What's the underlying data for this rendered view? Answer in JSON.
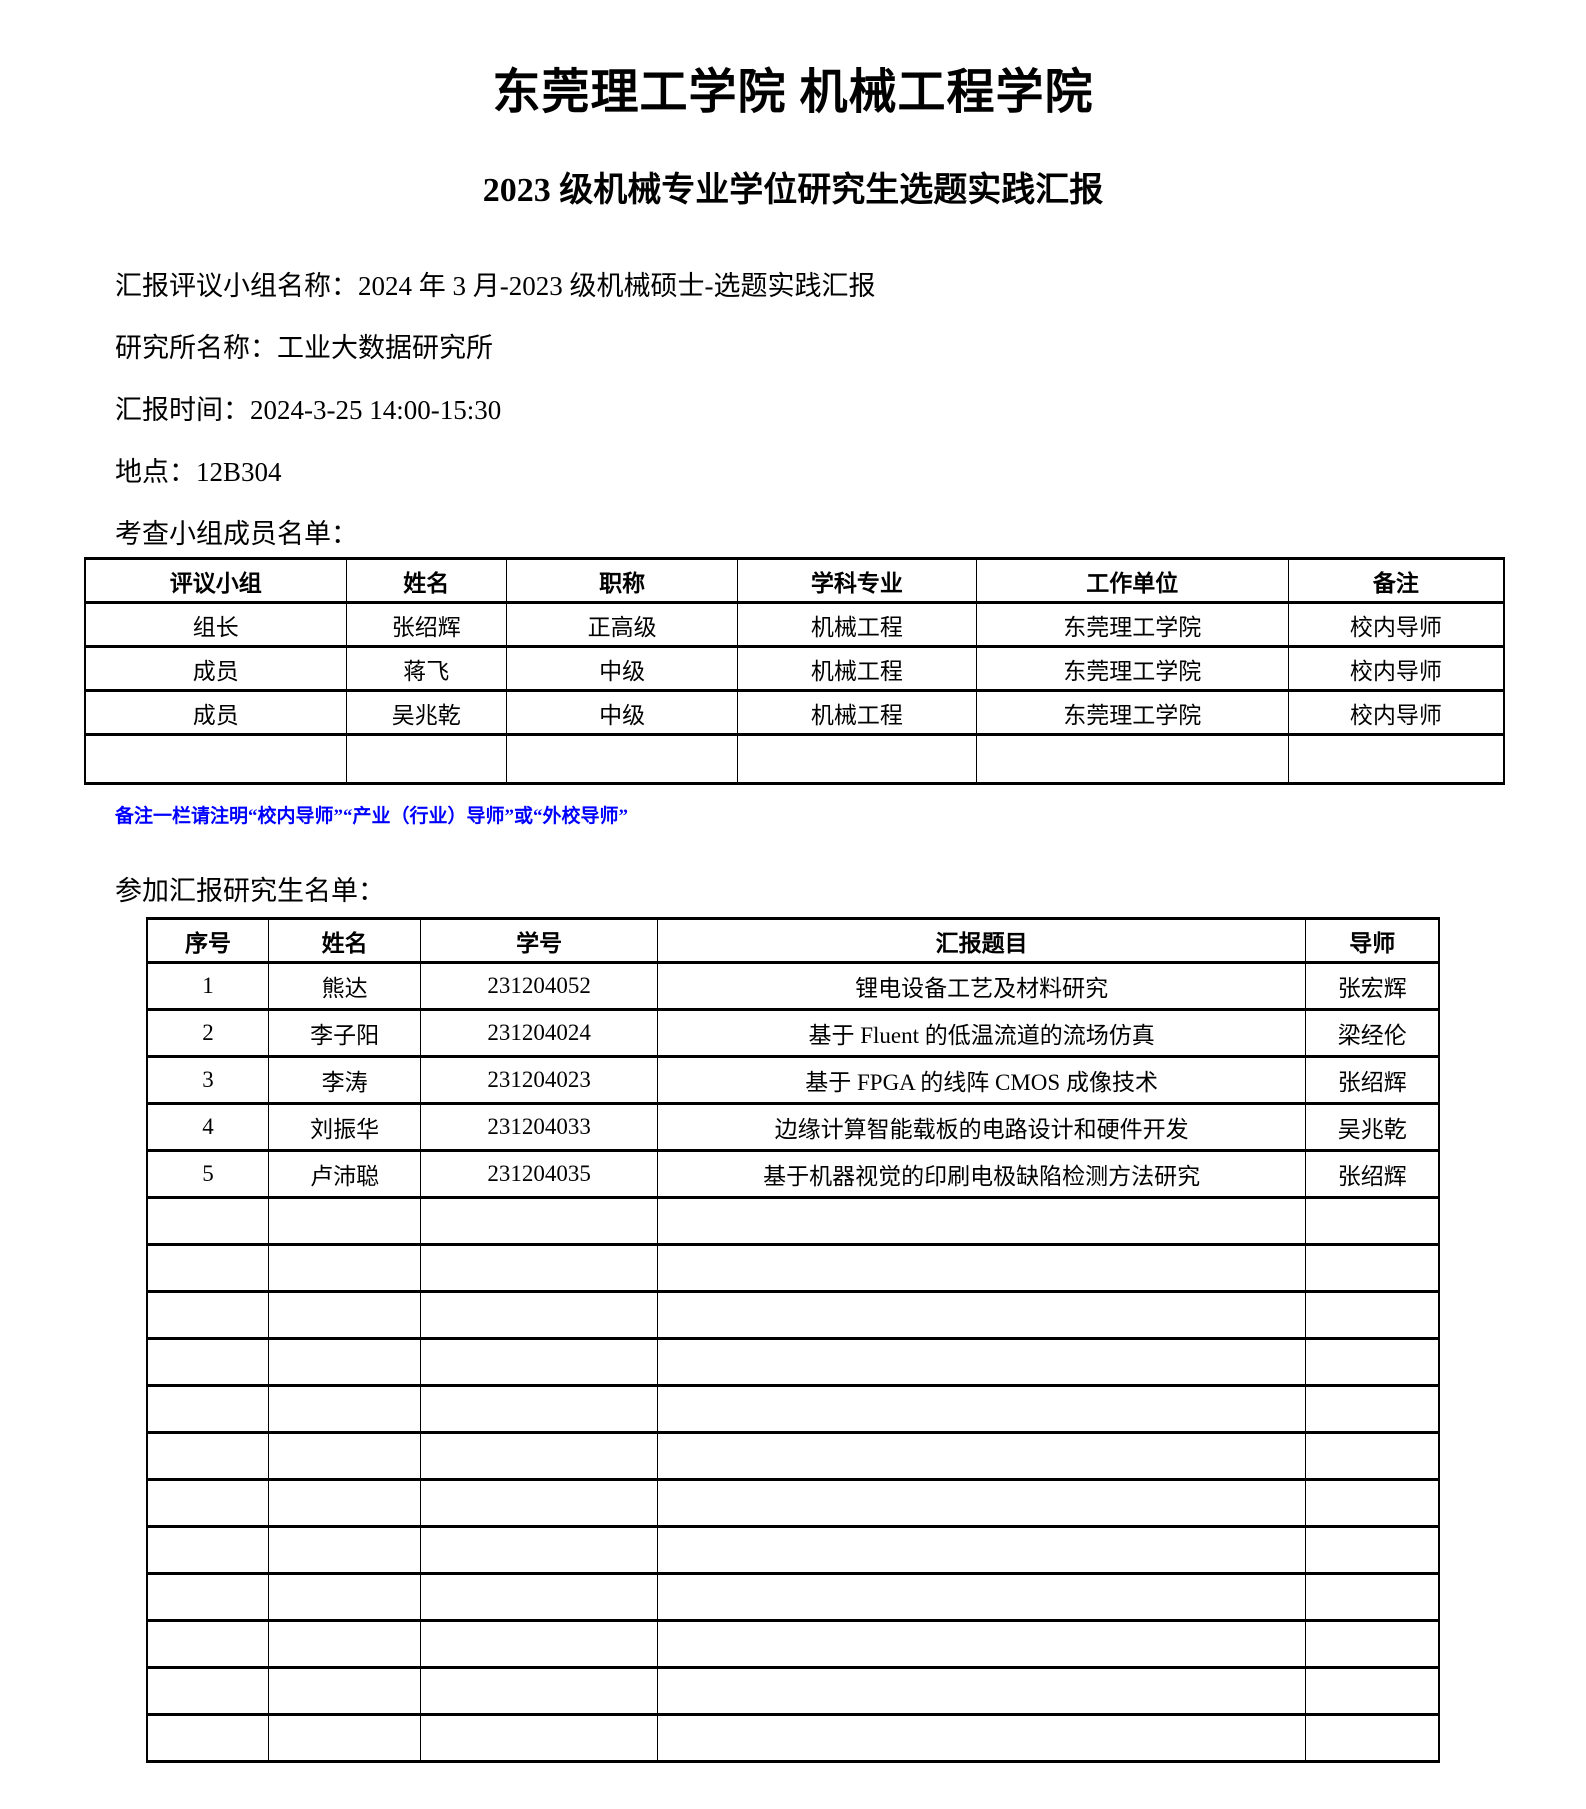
{
  "title": "东莞理工学院 机械工程学院",
  "subtitle": "2023 级机械专业学位研究生选题实践汇报",
  "info_lines": [
    "汇报评议小组名称：2024 年 3 月-2023 级机械硕士-选题实践汇报",
    "研究所名称：工业大数据研究所",
    "汇报时间：2024-3-25 14:00-15:30",
    "地点：12B304"
  ],
  "committee_section": {
    "label": "考查小组成员名单：",
    "headers": [
      "评议小组",
      "姓名",
      "职称",
      "学科专业",
      "工作单位",
      "备注"
    ],
    "rows": [
      [
        "组长",
        "张绍辉",
        "正高级",
        "机械工程",
        "东莞理工学院",
        "校内导师"
      ],
      [
        "成员",
        "蒋飞",
        "中级",
        "机械工程",
        "东莞理工学院",
        "校内导师"
      ],
      [
        "成员",
        "吴兆乾",
        "中级",
        "机械工程",
        "东莞理工学院",
        "校内导师"
      ],
      [
        "",
        "",
        "",
        "",
        "",
        ""
      ]
    ],
    "note": "备注一栏请注明“校内导师”“产业（行业）导师”或“外校导师”",
    "note_color": "#0000ff"
  },
  "students_section": {
    "label": "参加汇报研究生名单：",
    "headers": [
      "序号",
      "姓名",
      "学号",
      "汇报题目",
      "导师"
    ],
    "rows": [
      [
        "1",
        "熊达",
        "231204052",
        "锂电设备工艺及材料研究",
        "张宏辉"
      ],
      [
        "2",
        "李子阳",
        "231204024",
        "基于 Fluent 的低温流道的流场仿真",
        "梁经伦"
      ],
      [
        "3",
        "李涛",
        "231204023",
        "基于 FPGA 的线阵 CMOS 成像技术",
        "张绍辉"
      ],
      [
        "4",
        "刘振华",
        "231204033",
        "边缘计算智能载板的电路设计和硬件开发",
        "吴兆乾"
      ],
      [
        "5",
        "卢沛聪",
        "231204035",
        "基于机器视觉的印刷电极缺陷检测方法研究",
        "张绍辉"
      ]
    ],
    "empty_row_count": 12
  }
}
